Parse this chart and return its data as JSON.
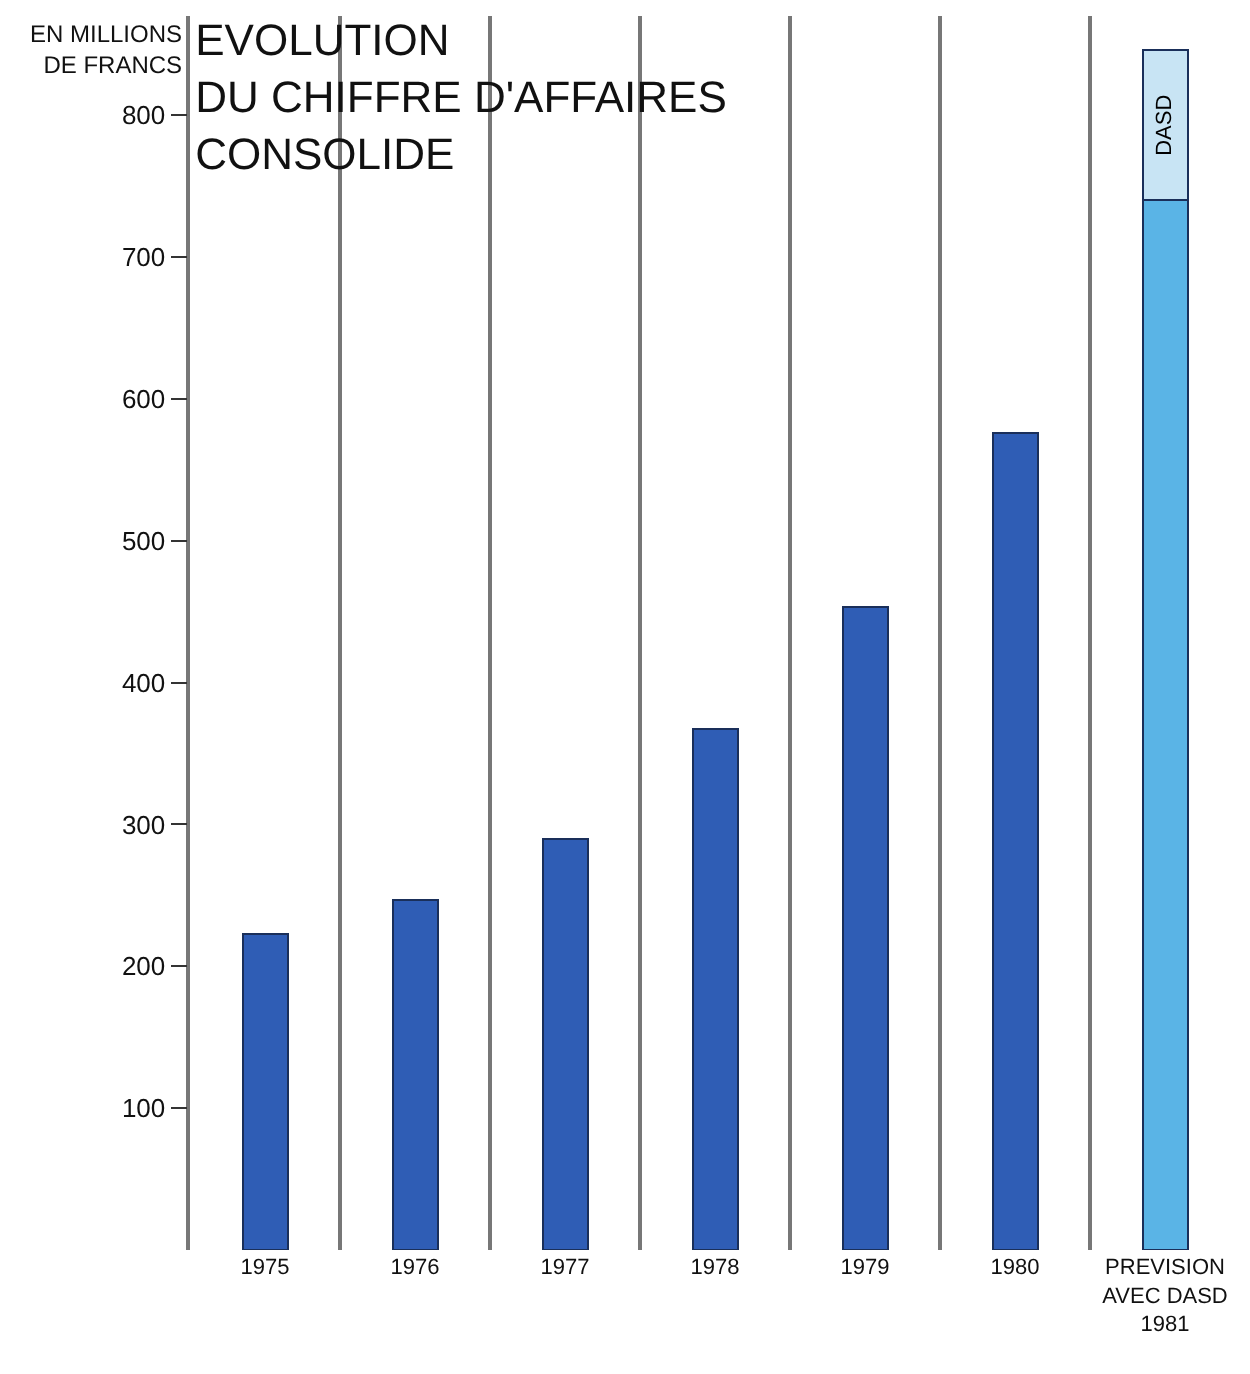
{
  "chart_data": {
    "type": "bar",
    "title": "EVOLUTION\nDU CHIFFRE D'AFFAIRES\nCONSOLIDE",
    "ylabel": "EN MILLIONS\nDE FRANCS",
    "categories": [
      "1975",
      "1976",
      "1977",
      "1978",
      "1979",
      "1980",
      "PREVISION\nAVEC DASD\n1981"
    ],
    "stacked": true,
    "series": [
      {
        "colors": [
          "#2f5db5",
          "#2f5db5",
          "#2f5db5",
          "#2f5db5",
          "#2f5db5",
          "#2f5db5",
          "#5ab4e6"
        ],
        "values": [
          223,
          247,
          290,
          367,
          453,
          576,
          740
        ]
      },
      {
        "name": "DASD",
        "color": "#c8e4f4",
        "values": [
          null,
          null,
          null,
          null,
          null,
          null,
          106
        ]
      }
    ],
    "ylim": [
      0,
      870
    ],
    "yticks": [
      100,
      200,
      300,
      400,
      500,
      600,
      700,
      800
    ],
    "grid": "x",
    "legend": false
  }
}
